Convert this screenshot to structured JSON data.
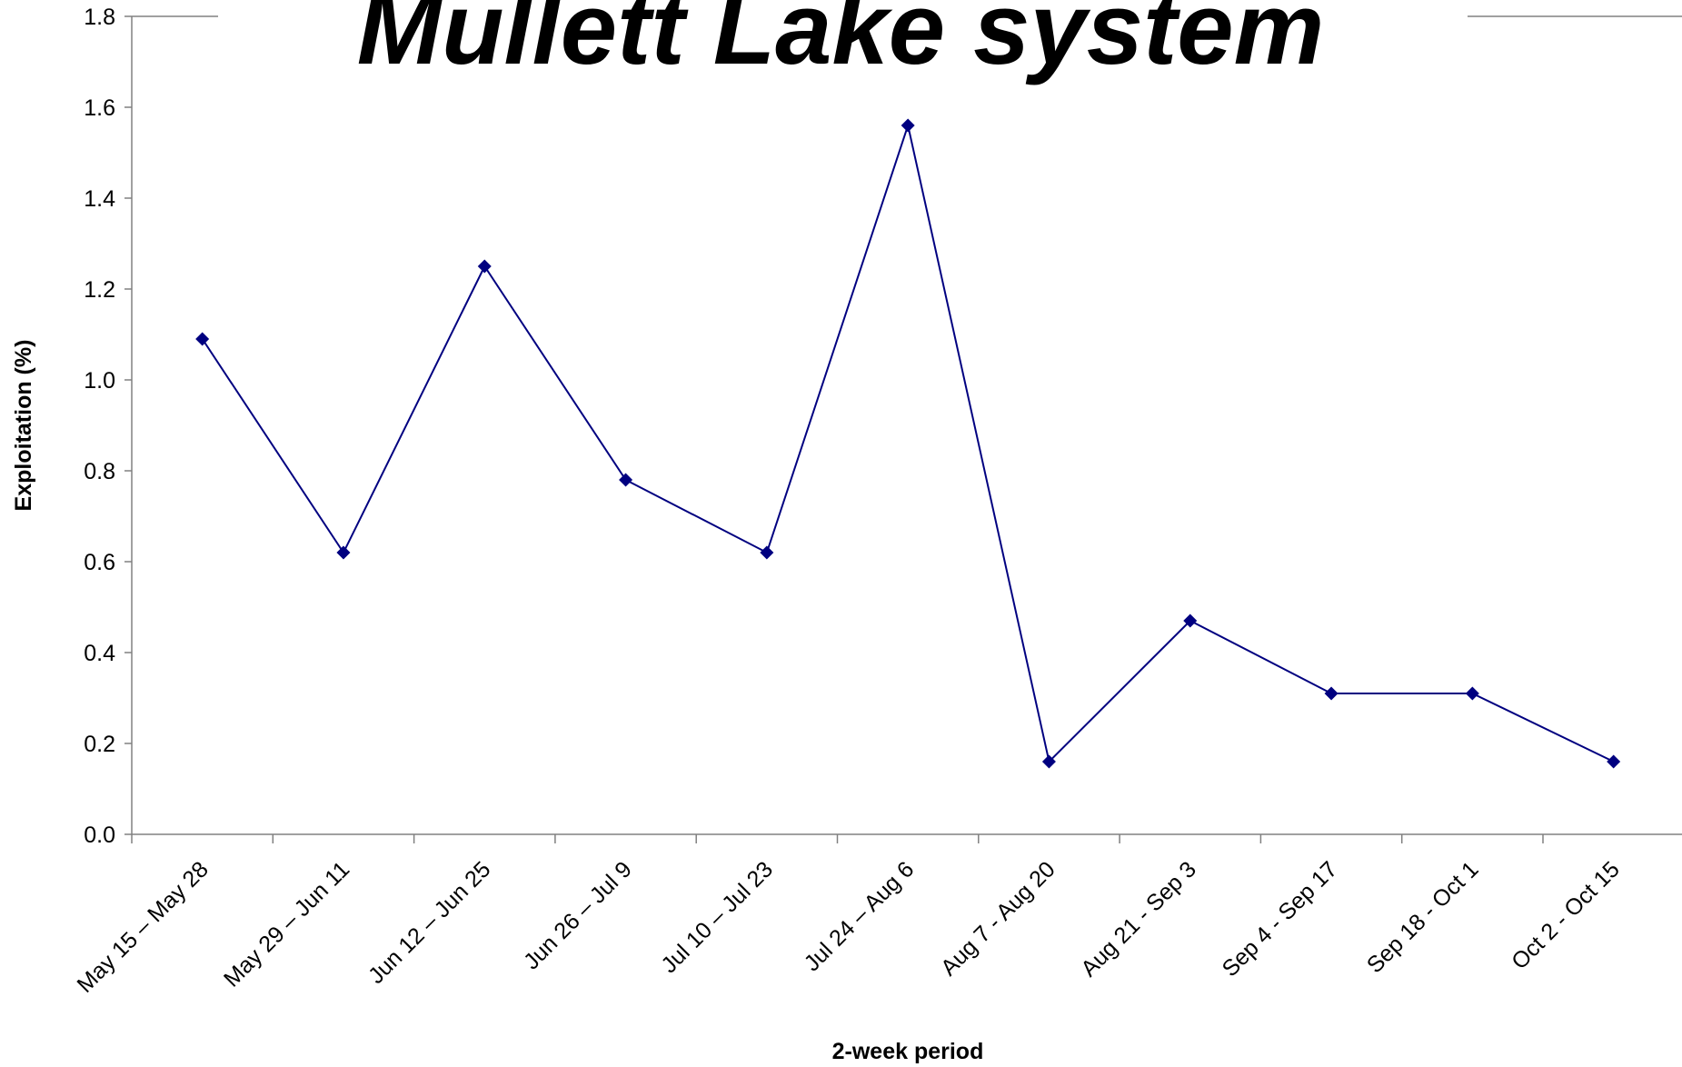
{
  "chart_data": {
    "type": "line",
    "title": "Mullett Lake system",
    "xlabel": "2-week period",
    "ylabel": "Exploitation (%)",
    "ylim": [
      0,
      1.8
    ],
    "yticks": [
      "0.0",
      "0.2",
      "0.4",
      "0.6",
      "0.8",
      "1.0",
      "1.2",
      "1.4",
      "1.6",
      "1.8"
    ],
    "grid": false,
    "categories": [
      "May 15 – May 28",
      "May 29 – Jun 11",
      "Jun 12 – Jun 25",
      "Jun 26 – Jul 9",
      "Jul 10 – Jul 23",
      "Jul 24 – Aug 6",
      "Aug 7 - Aug 20",
      "Aug 21 - Sep 3",
      "Sep 4 - Sep 17",
      "Sep 18 - Oct 1",
      "Oct 2 - Oct 15"
    ],
    "series": [
      {
        "values": [
          1.09,
          0.62,
          1.25,
          0.78,
          0.62,
          1.56,
          0.16,
          0.47,
          0.31,
          0.31,
          0.16
        ]
      }
    ],
    "colors": {
      "line": "#000080",
      "marker": "#000080",
      "axis": "#808080"
    }
  }
}
